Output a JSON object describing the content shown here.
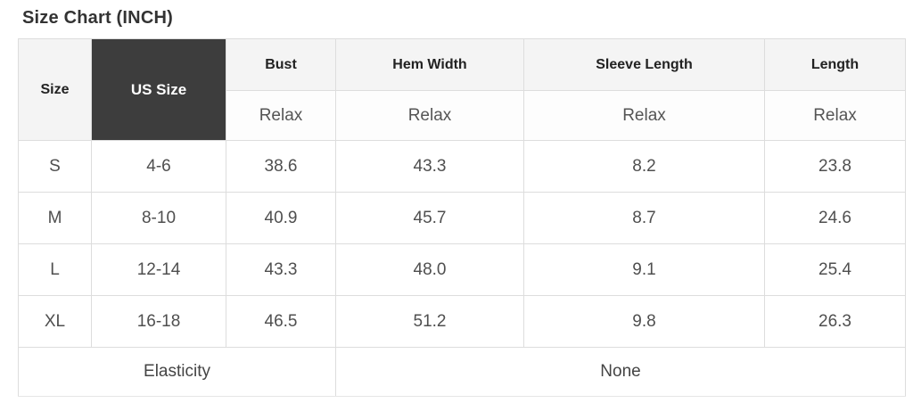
{
  "chart_data": {
    "type": "table",
    "title": "Size Chart (INCH)",
    "unit": "INCH",
    "columns": [
      "Size",
      "US Size",
      "Bust",
      "Hem Width",
      "Sleeve Length",
      "Length"
    ],
    "fit_row": [
      "",
      "",
      "Relax",
      "Relax",
      "Relax",
      "Relax"
    ],
    "rows": [
      [
        "S",
        "4-6",
        "38.6",
        "43.3",
        "8.2",
        "23.8"
      ],
      [
        "M",
        "8-10",
        "40.9",
        "45.7",
        "8.7",
        "24.6"
      ],
      [
        "L",
        "12-14",
        "43.3",
        "48.0",
        "9.1",
        "25.4"
      ],
      [
        "XL",
        "16-18",
        "46.5",
        "51.2",
        "9.8",
        "26.3"
      ]
    ],
    "footer": [
      "Elasticity",
      "None"
    ],
    "layout": {
      "grid": "on",
      "merged_cells": [
        "Size spans header+fit rows",
        "US Size spans header+fit rows",
        "Elasticity spans first 3 columns",
        "None spans last 3 columns"
      ]
    },
    "colors": {
      "us_size_header_bg": "#3d3d3d",
      "us_size_header_text": "#ffffff",
      "header_bg": "#f4f4f4",
      "border": "#dddddd",
      "body_text": "#4f4f4f",
      "header_text": "#222222",
      "title_text": "#333333"
    }
  }
}
